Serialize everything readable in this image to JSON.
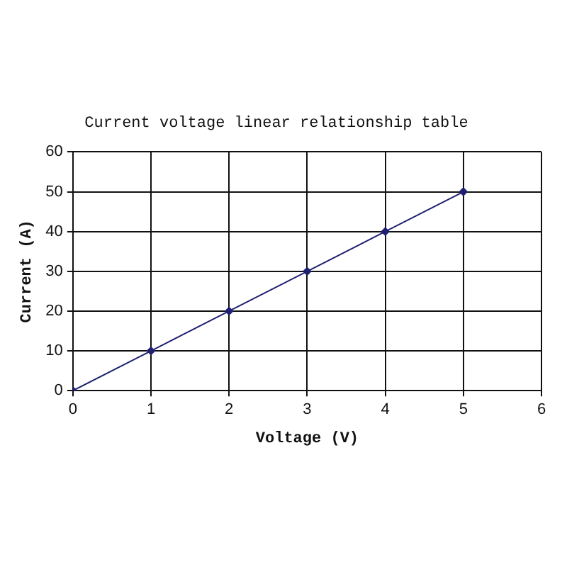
{
  "chart_data": {
    "type": "line",
    "title": "Current voltage linear relationship table",
    "xlabel": "Voltage (V)",
    "ylabel": "Current (A)",
    "x": [
      0,
      1,
      2,
      3,
      4,
      5
    ],
    "values": [
      0,
      10,
      20,
      30,
      40,
      50
    ],
    "color": "#1f2070",
    "marker": "diamond",
    "xlim": [
      0,
      6
    ],
    "ylim": [
      0,
      60
    ],
    "xticks": [
      0,
      1,
      2,
      3,
      4,
      5,
      6
    ],
    "yticks": [
      0,
      10,
      20,
      30,
      40,
      50,
      60
    ],
    "grid": true
  }
}
